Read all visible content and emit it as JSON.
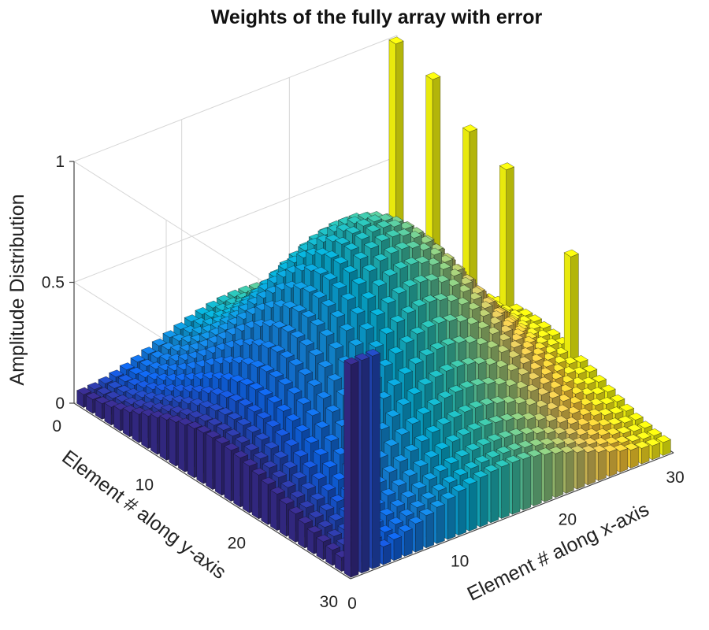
{
  "chart_data": {
    "type": "bar3d",
    "title": "Weights of the fully array with error",
    "xlabel": "Element # along x-axis",
    "ylabel": "Element # along y-axis",
    "zlabel": "Amplitude Distribution",
    "x_range": [
      1,
      30
    ],
    "y_range": [
      1,
      30
    ],
    "xlim": [
      0,
      30
    ],
    "ylim": [
      0,
      30
    ],
    "zlim": [
      0,
      1
    ],
    "x_ticks": [
      0,
      10,
      20,
      30
    ],
    "y_ticks": [
      0,
      10,
      20,
      30
    ],
    "z_ticks": [
      0,
      0.5,
      1
    ],
    "grid": true,
    "colormap": "parula",
    "colormap_stops": [
      "#352a87",
      "#0f5cdd",
      "#1481d6",
      "#06a4ca",
      "#2eb7a4",
      "#87bf77",
      "#d1bb59",
      "#fec832",
      "#f9fb0e"
    ],
    "distribution": {
      "shape": "raised-cosine taper",
      "pedestal": 0.25,
      "peak": 0.85
    },
    "error_elements": [
      {
        "x": 30,
        "y": 1,
        "z": 1.0
      },
      {
        "x": 30,
        "y": 5,
        "z": 0.95
      },
      {
        "x": 30,
        "y": 9,
        "z": 0.83
      },
      {
        "x": 30,
        "y": 13,
        "z": 0.77
      },
      {
        "x": 30,
        "y": 20,
        "z": 0.58
      },
      {
        "x": 1,
        "y": 30,
        "z": 0.88
      },
      {
        "x": 2,
        "y": 30,
        "z": 0.88
      },
      {
        "x": 3,
        "y": 30,
        "z": 0.88
      }
    ]
  }
}
